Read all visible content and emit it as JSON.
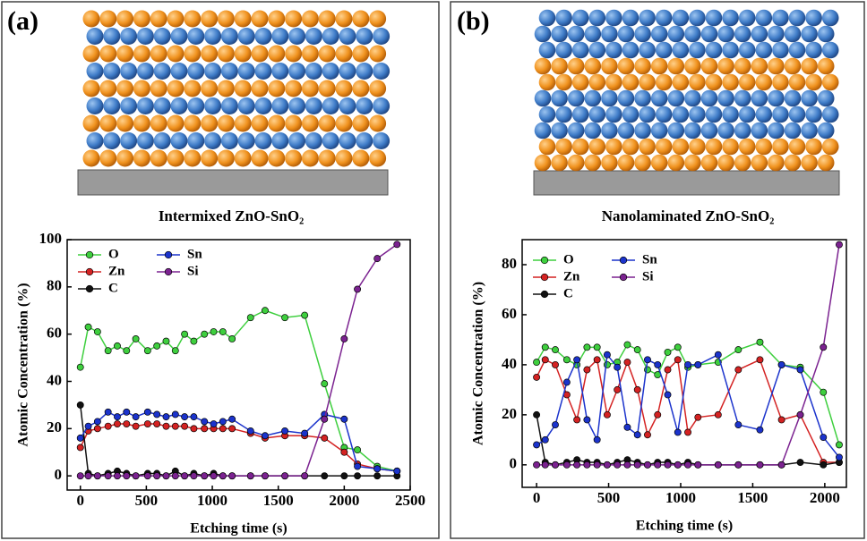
{
  "panels": [
    {
      "label": "(a)",
      "caption": "Intermixed ZnO-SnO₂"
    },
    {
      "label": "(b)",
      "caption": "Nanolaminated ZnO-SnO₂"
    }
  ],
  "chart_data": [
    {
      "type": "line",
      "x_label": "Etching time (s)",
      "y_label": "Atomic Concentration (%)",
      "x": [
        0,
        60,
        130,
        210,
        280,
        350,
        420,
        510,
        580,
        650,
        720,
        790,
        860,
        940,
        1010,
        1080,
        1150,
        1290,
        1400,
        1550,
        1700,
        1850,
        2000,
        2100,
        2250,
        2400
      ],
      "xlim": [
        -100,
        2500
      ],
      "ylim": [
        -6,
        100
      ],
      "xticks": [
        0,
        500,
        1000,
        1500,
        2000,
        2500
      ],
      "yticks": [
        0,
        20,
        40,
        60,
        80,
        100
      ],
      "series": [
        {
          "name": "O",
          "color": "#3ecf3e",
          "values": [
            46,
            63,
            61,
            53,
            55,
            53,
            58,
            53,
            55,
            57,
            53,
            60,
            57,
            60,
            61,
            61,
            58,
            67,
            70,
            67,
            68,
            39,
            12,
            11,
            4,
            2
          ]
        },
        {
          "name": "Zn",
          "color": "#d42222",
          "values": [
            12,
            19,
            20,
            21,
            22,
            22,
            21,
            22,
            22,
            21,
            21,
            21,
            20,
            20,
            20,
            20,
            20,
            18,
            16,
            17,
            17,
            16,
            10,
            5,
            3,
            2
          ]
        },
        {
          "name": "C",
          "color": "#111111",
          "values": [
            30,
            1,
            0,
            1,
            2,
            1,
            0,
            1,
            1,
            0,
            2,
            0,
            1,
            0,
            1,
            0,
            0,
            0,
            0,
            0,
            0,
            0,
            0,
            0,
            0,
            0
          ]
        },
        {
          "name": "Sn",
          "color": "#1b33cc",
          "values": [
            16,
            21,
            23,
            27,
            25,
            27,
            25,
            27,
            26,
            25,
            26,
            25,
            25,
            23,
            22,
            23,
            24,
            19,
            17,
            19,
            18,
            26,
            24,
            4,
            3,
            2
          ]
        },
        {
          "name": "Si",
          "color": "#7b2290",
          "values": [
            0,
            0,
            0,
            0,
            0,
            0,
            0,
            0,
            0,
            0,
            0,
            0,
            0,
            0,
            0,
            0,
            0,
            0,
            0,
            0,
            0,
            24,
            58,
            79,
            92,
            98
          ]
        }
      ]
    },
    {
      "type": "line",
      "x_label": "Etching time (s)",
      "y_label": "Atomic Concentration (%)",
      "x": [
        0,
        60,
        130,
        210,
        280,
        350,
        420,
        490,
        560,
        630,
        700,
        770,
        840,
        910,
        980,
        1050,
        1120,
        1260,
        1400,
        1550,
        1700,
        1830,
        1990,
        2100
      ],
      "xlim": [
        -100,
        2150
      ],
      "ylim": [
        -9,
        90
      ],
      "xticks": [
        0,
        500,
        1000,
        1500,
        2000
      ],
      "yticks": [
        0,
        20,
        40,
        60,
        80
      ],
      "series": [
        {
          "name": "O",
          "color": "#3ecf3e",
          "values": [
            41,
            47,
            46,
            42,
            40,
            47,
            47,
            40,
            41,
            48,
            46,
            38,
            36,
            45,
            47,
            39,
            40,
            41,
            46,
            49,
            40,
            39,
            29,
            8
          ]
        },
        {
          "name": "Zn",
          "color": "#d42222",
          "values": [
            35,
            42,
            40,
            28,
            18,
            38,
            42,
            20,
            30,
            41,
            30,
            12,
            20,
            38,
            42,
            13,
            19,
            20,
            38,
            42,
            18,
            20,
            1,
            1
          ]
        },
        {
          "name": "C",
          "color": "#111111",
          "values": [
            20,
            1,
            0,
            1,
            2,
            1,
            1,
            0,
            1,
            2,
            1,
            0,
            1,
            1,
            0,
            1,
            0,
            0,
            0,
            0,
            0,
            1,
            0,
            1
          ]
        },
        {
          "name": "Sn",
          "color": "#1b33cc",
          "values": [
            8,
            10,
            16,
            33,
            42,
            18,
            10,
            44,
            39,
            15,
            12,
            42,
            40,
            28,
            13,
            40,
            40,
            44,
            16,
            14,
            40,
            38,
            11,
            3
          ]
        },
        {
          "name": "Si",
          "color": "#7b2290",
          "values": [
            0,
            0,
            0,
            0,
            0,
            0,
            0,
            0,
            0,
            0,
            0,
            0,
            0,
            0,
            0,
            0,
            0,
            0,
            0,
            0,
            0,
            20,
            47,
            88
          ]
        }
      ]
    }
  ]
}
